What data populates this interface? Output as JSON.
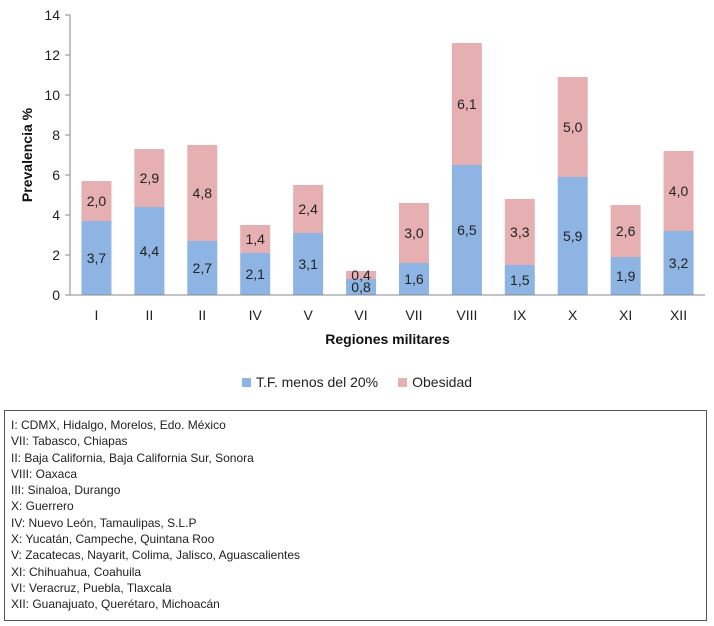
{
  "chart_data": {
    "type": "bar",
    "stacked": true,
    "title": "",
    "xlabel": "Regiones militares",
    "ylabel": "Prevalencia %",
    "ylim": [
      0,
      14
    ],
    "yticks": [
      0,
      2,
      4,
      6,
      8,
      10,
      12,
      14
    ],
    "grid": false,
    "legend_position": "bottom",
    "categories": [
      "I",
      "II",
      "II",
      "IV",
      "V",
      "VI",
      "VII",
      "VIII",
      "IX",
      "X",
      "XI",
      "XII"
    ],
    "series": [
      {
        "name": "T.F. menos del 20%",
        "color": "#8DB4E2",
        "values": [
          3.7,
          4.4,
          2.7,
          2.1,
          3.1,
          0.8,
          1.6,
          6.5,
          1.5,
          5.9,
          1.9,
          3.2
        ],
        "labels": [
          "3,7",
          "4,4",
          "2,7",
          "2,1",
          "3,1",
          "0,8",
          "1,6",
          "6,5",
          "1,5",
          "5,9",
          "1,9",
          "3,2"
        ]
      },
      {
        "name": "Obesidad",
        "color": "#E6B0B3",
        "values": [
          2.0,
          2.9,
          4.8,
          1.4,
          2.4,
          0.4,
          3.0,
          6.1,
          3.3,
          5.0,
          2.6,
          4.0
        ],
        "labels": [
          "2,0",
          "2,9",
          "4,8",
          "1,4",
          "2,4",
          "0,4",
          "3,0",
          "6,1",
          "3,3",
          "5,0",
          "2,6",
          "4,0"
        ]
      }
    ]
  },
  "notes": [
    "I: CDMX, Hidalgo, Morelos, Edo. México",
    "VII: Tabasco, Chiapas",
    "II: Baja California, Baja California Sur, Sonora",
    "VIII: Oaxaca",
    "III: Sinaloa, Durango",
    "X: Guerrero",
    "IV: Nuevo León, Tamaulipas, S.L.P",
    "X: Yucatán, Campeche, Quintana Roo",
    "V: Zacatecas, Nayarit, Colima, Jalisco, Aguascalientes",
    "XI: Chihuahua, Coahuila",
    "VI: Veracruz, Puebla, Tlaxcala",
    "XII: Guanajuato, Querétaro, Michoacán"
  ]
}
